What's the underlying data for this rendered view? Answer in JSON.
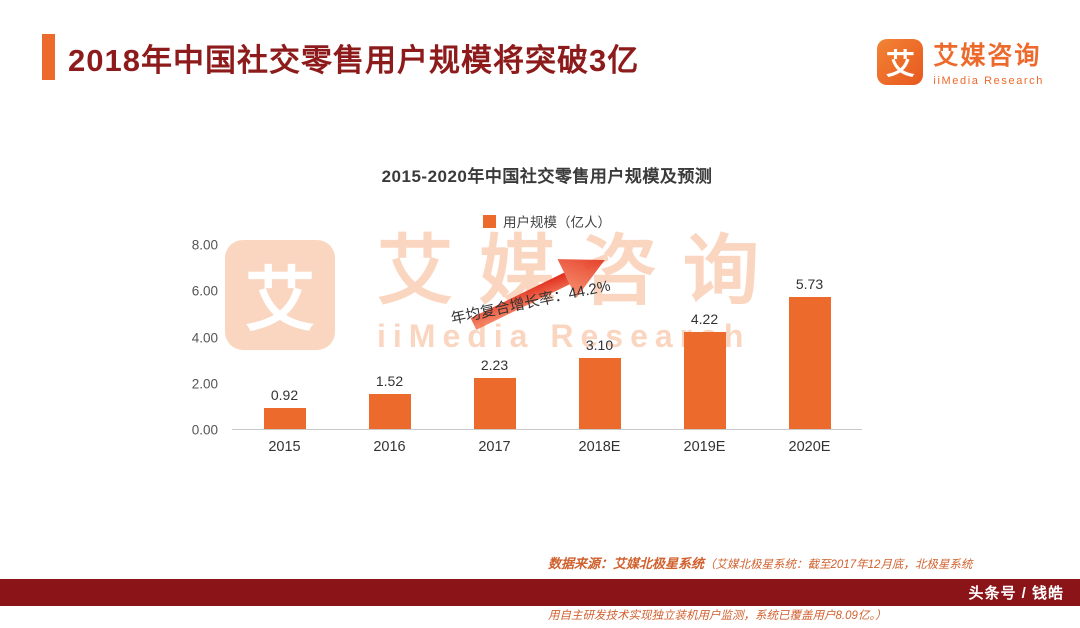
{
  "header": {
    "title": "2018年中国社交零售用户规模将突破3亿"
  },
  "logo": {
    "glyph": "艾",
    "name_cn": "艾媒咨询",
    "name_en": "iiMedia Research"
  },
  "watermark": {
    "glyph": "艾",
    "name_cn": "艾媒咨询",
    "name_en": "iiMedia Research"
  },
  "chart_data": {
    "type": "bar",
    "title": "2015-2020年中国社交零售用户规模及预测",
    "legend": "用户规模（亿人）",
    "categories": [
      "2015",
      "2016",
      "2017",
      "2018E",
      "2019E",
      "2020E"
    ],
    "values": [
      0.92,
      1.52,
      2.23,
      3.1,
      4.22,
      5.73
    ],
    "value_labels": [
      "0.92",
      "1.52",
      "2.23",
      "3.10",
      "4.22",
      "5.73"
    ],
    "ylim": [
      0,
      8
    ],
    "yticks": [
      "8.00",
      "6.00",
      "4.00",
      "2.00",
      "0.00"
    ],
    "annotation": "年均复合增长率：44.2%",
    "xlabel": "",
    "ylabel": "",
    "grid": false,
    "legend_position": "top-center"
  },
  "footer": {
    "source_bold": "数据来源：艾媒北极星系统",
    "source_note1": "（艾媒北极星系统：截至2017年12月底，北极星系统采",
    "source_note2": "用自主研发技术实现独立装机用户监测，系统已覆盖用户8.09亿。）",
    "byline": "头条号 / 钱皓"
  },
  "colors": {
    "accent": "#ED6A2D",
    "bar": "#ED6A2D",
    "title-red": "#8E1B1B",
    "source-red": "#D0612F",
    "byline-bg": "#8A1417",
    "axis-text": "#333333"
  }
}
